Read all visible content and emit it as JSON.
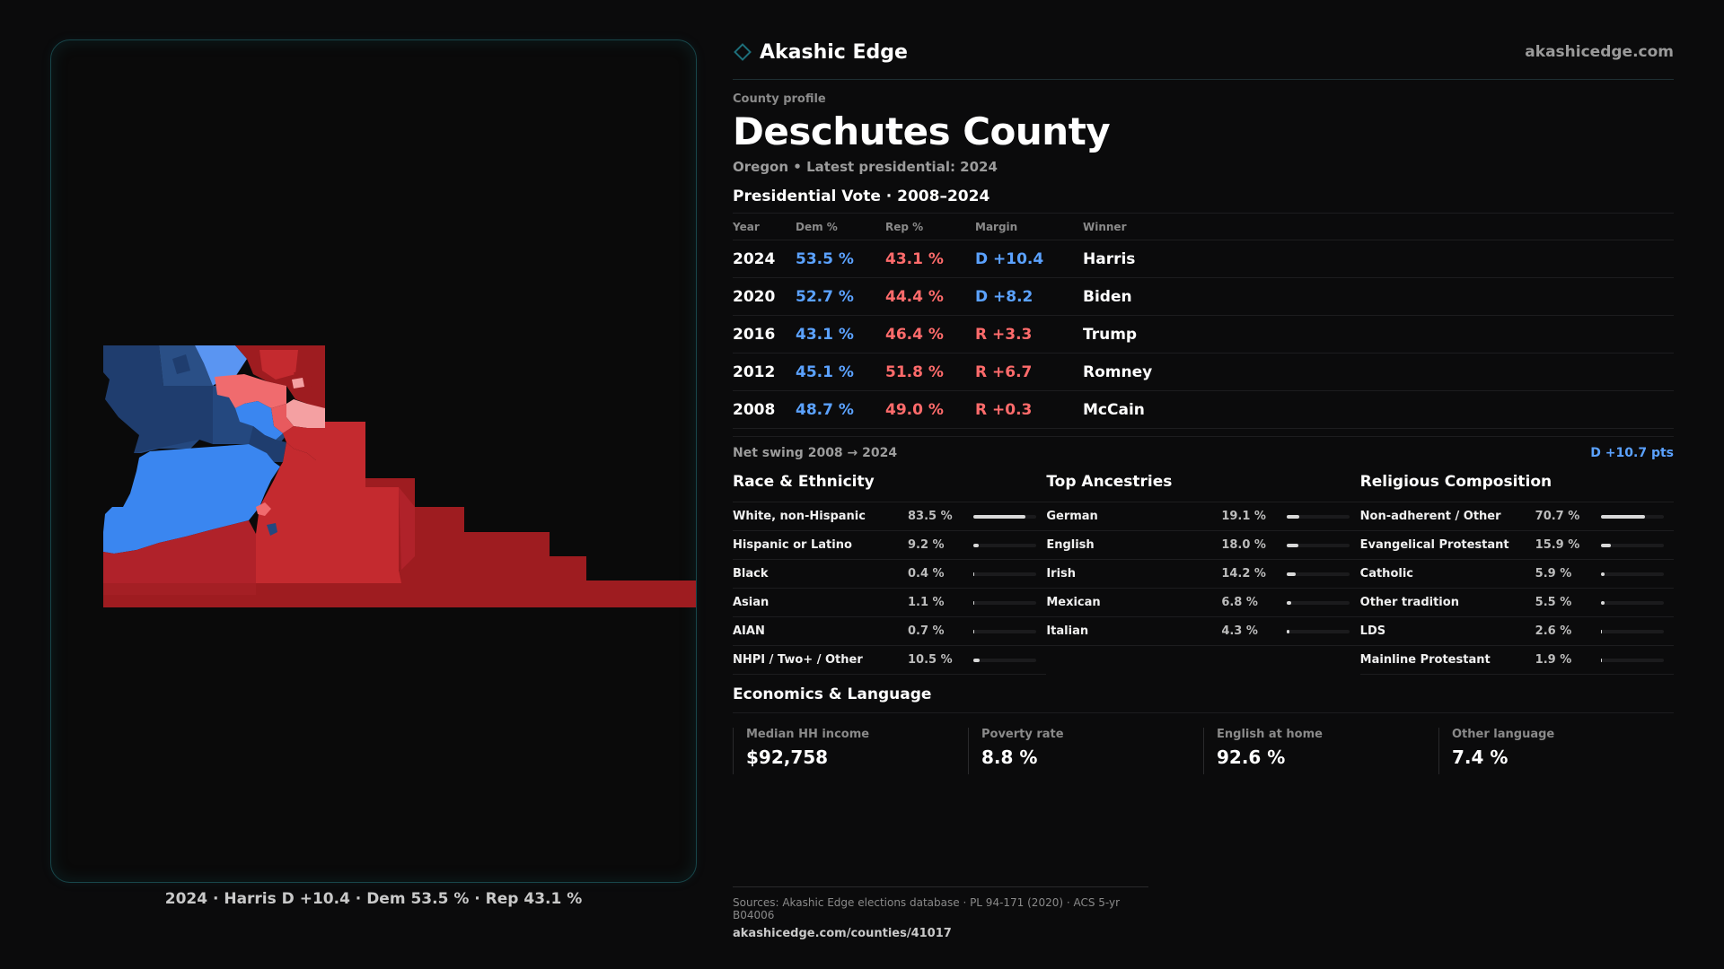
{
  "brand": {
    "name": "Akashic Edge",
    "url": "akashicedge.com"
  },
  "profile": {
    "kicker": "County profile",
    "title": "Deschutes County",
    "subtitle": "Oregon • Latest presidential: 2024"
  },
  "vote": {
    "title": "Presidential Vote · 2008–2024",
    "headers": {
      "year": "Year",
      "dem": "Dem %",
      "rep": "Rep %",
      "margin": "Margin",
      "winner": "Winner"
    },
    "rows": [
      {
        "year": "2024",
        "dem": "53.5 %",
        "rep": "43.1 %",
        "margin": "D +10.4",
        "winner": "Harris"
      },
      {
        "year": "2020",
        "dem": "52.7 %",
        "rep": "44.4 %",
        "margin": "D +8.2",
        "winner": "Biden"
      },
      {
        "year": "2016",
        "dem": "43.1 %",
        "rep": "46.4 %",
        "margin": "R +3.3",
        "winner": "Trump"
      },
      {
        "year": "2012",
        "dem": "45.1 %",
        "rep": "51.8 %",
        "margin": "R +6.7",
        "winner": "Romney"
      },
      {
        "year": "2008",
        "dem": "48.7 %",
        "rep": "49.0 %",
        "margin": "R +0.3",
        "winner": "McCain"
      }
    ],
    "swing_label": "Net swing 2008 → 2024",
    "swing_value": "D +10.7 pts"
  },
  "race": {
    "title": "Race & Ethnicity",
    "items": [
      {
        "label": "White, non-Hispanic",
        "value": "83.5 %",
        "pct": 83.5
      },
      {
        "label": "Hispanic or Latino",
        "value": "9.2 %",
        "pct": 9.2
      },
      {
        "label": "Black",
        "value": "0.4 %",
        "pct": 0.4
      },
      {
        "label": "Asian",
        "value": "1.1 %",
        "pct": 1.1
      },
      {
        "label": "AIAN",
        "value": "0.7 %",
        "pct": 0.7
      },
      {
        "label": "NHPI / Two+ / Other",
        "value": "10.5 %",
        "pct": 10.5
      }
    ]
  },
  "ancestry": {
    "title": "Top Ancestries",
    "items": [
      {
        "label": "German",
        "value": "19.1 %",
        "pct": 19.1
      },
      {
        "label": "English",
        "value": "18.0 %",
        "pct": 18.0
      },
      {
        "label": "Irish",
        "value": "14.2 %",
        "pct": 14.2
      },
      {
        "label": "Mexican",
        "value": "6.8 %",
        "pct": 6.8
      },
      {
        "label": "Italian",
        "value": "4.3 %",
        "pct": 4.3
      }
    ]
  },
  "religion": {
    "title": "Religious Composition",
    "items": [
      {
        "label": "Non-adherent / Other",
        "value": "70.7 %",
        "pct": 70.7
      },
      {
        "label": "Evangelical Protestant",
        "value": "15.9 %",
        "pct": 15.9
      },
      {
        "label": "Catholic",
        "value": "5.9 %",
        "pct": 5.9
      },
      {
        "label": "Other tradition",
        "value": "5.5 %",
        "pct": 5.5
      },
      {
        "label": "LDS",
        "value": "2.6 %",
        "pct": 2.6
      },
      {
        "label": "Mainline Protestant",
        "value": "1.9 %",
        "pct": 1.9
      }
    ]
  },
  "economics": {
    "title": "Economics & Language",
    "cards": [
      {
        "label": "Median HH income",
        "value": "$92,758"
      },
      {
        "label": "Poverty rate",
        "value": "8.8 %"
      },
      {
        "label": "English at home",
        "value": "92.6 %"
      },
      {
        "label": "Other language",
        "value": "7.4 %"
      }
    ]
  },
  "map": {
    "caption": "2024 · Harris D +10.4 · Dem 53.5 % · Rep 43.1 %",
    "colors": {
      "dem_dark": "#1f3d6e",
      "dem_mid": "#2a5ba8",
      "dem_light": "#3a86f0",
      "dem_pale": "#5a95f2",
      "rep_pale": "#f4a0a2",
      "rep_light": "#f06b6e",
      "rep_mid": "#c42a2f",
      "rep_dark": "#9e1c20"
    }
  },
  "sources": {
    "line": "Sources: Akashic Edge elections database · PL 94-171 (2020) · ACS 5-yr B04006",
    "url": "akashicedge.com/counties/41017"
  }
}
